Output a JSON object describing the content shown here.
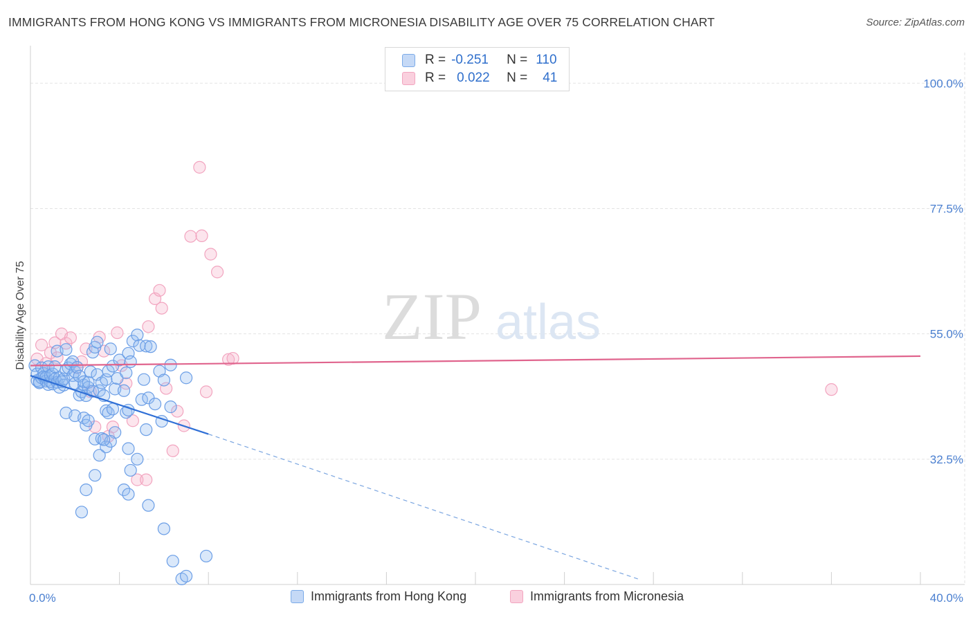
{
  "title": "IMMIGRANTS FROM HONG KONG VS IMMIGRANTS FROM MICRONESIA DISABILITY AGE OVER 75 CORRELATION CHART",
  "source": "Source: ZipAtlas.com",
  "watermark": {
    "zip": "ZIP",
    "atlas": "atlas"
  },
  "legend": {
    "rows": [
      {
        "r_label": "R =",
        "r_value": "-0.251",
        "n_label": "N =",
        "n_value": "110",
        "color": "#7aaae8"
      },
      {
        "r_label": "R =",
        "r_value": "0.022",
        "n_label": "N =",
        "n_value": "41",
        "color": "#f2a4bf"
      }
    ]
  },
  "bottom_legend": {
    "hk": "Immigrants from Hong Kong",
    "mic": "Immigrants from Micronesia"
  },
  "chart_data": {
    "type": "scatter",
    "ylabel": "Disability Age Over 75",
    "xlim": [
      0,
      40
    ],
    "ylim": [
      10,
      105
    ],
    "x_tick_labels": [
      "0.0%",
      "40.0%"
    ],
    "y_ticks": [
      100,
      77.5,
      55,
      32.5
    ],
    "y_tick_labels": [
      "100.0%",
      "77.5%",
      "55.0%",
      "32.5%"
    ],
    "grid": true,
    "series": [
      {
        "name": "Immigrants from Hong Kong",
        "color": "#6b9ee6",
        "line_color": "#2f6fd6",
        "trend": {
          "x0": 0.0,
          "y0": 47.5,
          "x1": 8.0,
          "y1": 37.0,
          "dash_to_x": 27.3,
          "dash_to_y": 11.0
        },
        "points": [
          [
            0.2,
            49.3
          ],
          [
            0.3,
            47.8
          ],
          [
            0.3,
            46.6
          ],
          [
            0.4,
            46.2
          ],
          [
            0.4,
            46.4
          ],
          [
            0.5,
            47.1
          ],
          [
            0.5,
            48.9
          ],
          [
            0.6,
            47.9
          ],
          [
            0.6,
            47.3
          ],
          [
            0.7,
            46.5
          ],
          [
            0.7,
            47.2
          ],
          [
            0.8,
            49.1
          ],
          [
            0.8,
            45.9
          ],
          [
            0.9,
            46.4
          ],
          [
            0.9,
            47.5
          ],
          [
            1.0,
            46.0
          ],
          [
            1.0,
            47.8
          ],
          [
            1.1,
            49.1
          ],
          [
            1.1,
            46.9
          ],
          [
            1.2,
            51.9
          ],
          [
            1.2,
            46.3
          ],
          [
            1.3,
            45.4
          ],
          [
            1.3,
            47.1
          ],
          [
            1.4,
            46.4
          ],
          [
            1.5,
            45.8
          ],
          [
            1.5,
            46.9
          ],
          [
            1.6,
            48.5
          ],
          [
            1.6,
            52.2
          ],
          [
            1.7,
            48.9
          ],
          [
            1.8,
            49.6
          ],
          [
            1.9,
            47.5
          ],
          [
            1.9,
            50.0
          ],
          [
            2.0,
            48.2
          ],
          [
            2.0,
            46.1
          ],
          [
            2.1,
            49.0
          ],
          [
            2.2,
            47.4
          ],
          [
            2.2,
            44.0
          ],
          [
            2.3,
            44.6
          ],
          [
            2.4,
            45.8
          ],
          [
            2.4,
            46.4
          ],
          [
            2.5,
            43.9
          ],
          [
            2.6,
            45.4
          ],
          [
            2.6,
            46.3
          ],
          [
            2.7,
            48.2
          ],
          [
            2.8,
            44.7
          ],
          [
            2.8,
            51.7
          ],
          [
            2.9,
            52.6
          ],
          [
            3.0,
            53.5
          ],
          [
            3.0,
            47.7
          ],
          [
            3.1,
            44.8
          ],
          [
            3.2,
            46.2
          ],
          [
            3.3,
            43.9
          ],
          [
            3.4,
            46.8
          ],
          [
            3.5,
            48.3
          ],
          [
            3.6,
            52.3
          ],
          [
            3.7,
            49.2
          ],
          [
            3.8,
            45.1
          ],
          [
            3.9,
            47.0
          ],
          [
            4.0,
            50.3
          ],
          [
            4.2,
            44.8
          ],
          [
            4.3,
            48.0
          ],
          [
            4.4,
            51.5
          ],
          [
            4.5,
            50.0
          ],
          [
            4.6,
            53.7
          ],
          [
            4.8,
            54.8
          ],
          [
            4.9,
            52.9
          ],
          [
            5.0,
            43.2
          ],
          [
            5.1,
            46.8
          ],
          [
            5.2,
            52.8
          ],
          [
            5.3,
            43.5
          ],
          [
            5.4,
            52.7
          ],
          [
            5.6,
            42.4
          ],
          [
            5.8,
            48.3
          ],
          [
            5.9,
            39.3
          ],
          [
            6.0,
            46.7
          ],
          [
            6.3,
            41.9
          ],
          [
            6.3,
            49.4
          ],
          [
            7.0,
            47.1
          ],
          [
            1.6,
            40.8
          ],
          [
            2.0,
            40.3
          ],
          [
            2.4,
            39.9
          ],
          [
            2.5,
            38.6
          ],
          [
            2.6,
            39.4
          ],
          [
            3.4,
            41.2
          ],
          [
            3.5,
            40.8
          ],
          [
            3.7,
            41.5
          ],
          [
            3.8,
            37.3
          ],
          [
            4.3,
            40.9
          ],
          [
            4.4,
            41.3
          ],
          [
            5.2,
            37.8
          ],
          [
            2.9,
            36.1
          ],
          [
            3.2,
            36.2
          ],
          [
            3.4,
            34.7
          ],
          [
            4.4,
            34.4
          ],
          [
            4.5,
            30.5
          ],
          [
            4.8,
            32.5
          ],
          [
            4.2,
            27.0
          ],
          [
            4.4,
            26.2
          ],
          [
            5.3,
            24.2
          ],
          [
            6.0,
            20.0
          ],
          [
            6.4,
            14.2
          ],
          [
            6.8,
            11.0
          ],
          [
            7.0,
            11.5
          ],
          [
            7.9,
            15.1
          ],
          [
            3.6,
            35.7
          ],
          [
            3.1,
            33.2
          ],
          [
            2.9,
            29.6
          ],
          [
            2.5,
            27.0
          ],
          [
            2.3,
            23.0
          ],
          [
            3.3,
            36.0
          ]
        ]
      },
      {
        "name": "Immigrants from Micronesia",
        "color": "#f2a4bf",
        "line_color": "#e0648d",
        "trend": {
          "x0": 0.0,
          "y0": 49.3,
          "x1": 40.0,
          "y1": 51.0
        },
        "points": [
          [
            0.3,
            50.5
          ],
          [
            0.5,
            53.0
          ],
          [
            0.7,
            49.7
          ],
          [
            0.9,
            51.6
          ],
          [
            1.1,
            53.4
          ],
          [
            1.2,
            50.7
          ],
          [
            1.4,
            55.0
          ],
          [
            1.6,
            53.3
          ],
          [
            1.8,
            54.3
          ],
          [
            2.1,
            48.9
          ],
          [
            2.3,
            50.0
          ],
          [
            2.5,
            52.3
          ],
          [
            2.7,
            44.6
          ],
          [
            2.9,
            38.3
          ],
          [
            3.1,
            54.4
          ],
          [
            3.3,
            51.9
          ],
          [
            3.5,
            36.6
          ],
          [
            3.7,
            38.3
          ],
          [
            3.9,
            55.2
          ],
          [
            4.1,
            49.3
          ],
          [
            4.3,
            46.1
          ],
          [
            4.6,
            39.4
          ],
          [
            4.8,
            28.8
          ],
          [
            5.2,
            28.8
          ],
          [
            5.3,
            56.3
          ],
          [
            5.6,
            61.3
          ],
          [
            5.8,
            62.8
          ],
          [
            5.9,
            59.6
          ],
          [
            6.1,
            45.2
          ],
          [
            6.4,
            34.0
          ],
          [
            6.6,
            41.1
          ],
          [
            6.9,
            38.5
          ],
          [
            7.2,
            72.5
          ],
          [
            7.6,
            84.9
          ],
          [
            7.7,
            72.6
          ],
          [
            7.9,
            44.6
          ],
          [
            8.1,
            69.3
          ],
          [
            8.4,
            66.1
          ],
          [
            8.9,
            50.4
          ],
          [
            9.1,
            50.6
          ],
          [
            36.0,
            45.0
          ]
        ]
      }
    ]
  }
}
